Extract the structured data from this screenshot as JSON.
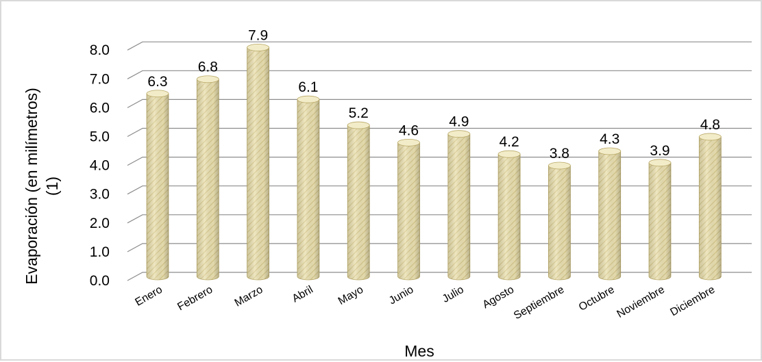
{
  "chart_data": {
    "type": "bar",
    "categories": [
      "Enero",
      "Febrero",
      "Marzo",
      "Abril",
      "Mayo",
      "Junio",
      "Julio",
      "Agosto",
      "Septiembre",
      "Octubre",
      "Noviembre",
      "Diciembre"
    ],
    "values": [
      6.3,
      6.8,
      7.9,
      6.1,
      5.2,
      4.6,
      4.9,
      4.2,
      3.8,
      4.3,
      3.9,
      4.8
    ],
    "data_labels": [
      "6.3",
      "6.8",
      "7.9",
      "6.1",
      "5.2",
      "4.6",
      "4.9",
      "4.2",
      "3.8",
      "4.3",
      "3.9",
      "4.8"
    ],
    "y_ticks": [
      "0.0",
      "1.0",
      "2.0",
      "3.0",
      "4.0",
      "5.0",
      "6.0",
      "7.0",
      "8.0"
    ],
    "ylim": [
      0,
      8
    ],
    "xlabel": "Mes",
    "ylabel_lines": [
      "Evaporación (en milímetros)",
      "(1)"
    ],
    "grid": true,
    "legend": "none",
    "style": "3d-cylinder",
    "bar_color": "#ece2b3",
    "bar_stripe_color": "#d6c78a"
  }
}
